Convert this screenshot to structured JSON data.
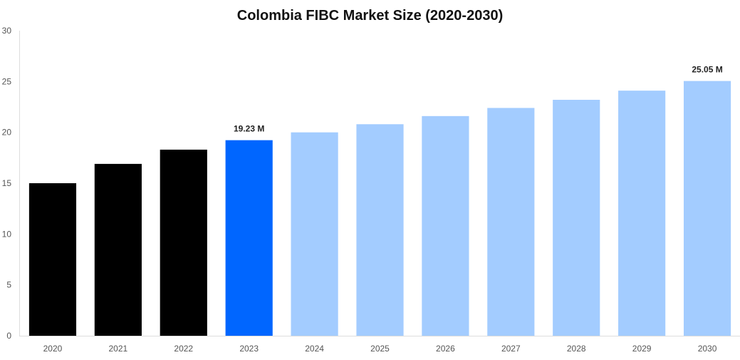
{
  "chart_data": {
    "type": "bar",
    "title": "Colombia FIBC Market Size (2020-2030)",
    "xlabel": "",
    "ylabel": "",
    "categories": [
      "2020",
      "2021",
      "2022",
      "2023",
      "2024",
      "2025",
      "2026",
      "2027",
      "2028",
      "2029",
      "2030"
    ],
    "values": [
      15.0,
      16.9,
      18.3,
      19.23,
      20.0,
      20.8,
      21.6,
      22.4,
      23.2,
      24.1,
      25.05
    ],
    "bar_colors": [
      "#000000",
      "#000000",
      "#000000",
      "#0066ff",
      "#a3ccff",
      "#a3ccff",
      "#a3ccff",
      "#a3ccff",
      "#a3ccff",
      "#a3ccff",
      "#a3ccff"
    ],
    "data_labels": [
      {
        "category": "2023",
        "text": "19.23 M"
      },
      {
        "category": "2030",
        "text": "25.05 M"
      }
    ],
    "ylim": [
      0,
      30
    ],
    "yticks": [
      "0",
      "5",
      "10",
      "15",
      "20",
      "25",
      "30"
    ],
    "grid": false,
    "legend": "none"
  }
}
